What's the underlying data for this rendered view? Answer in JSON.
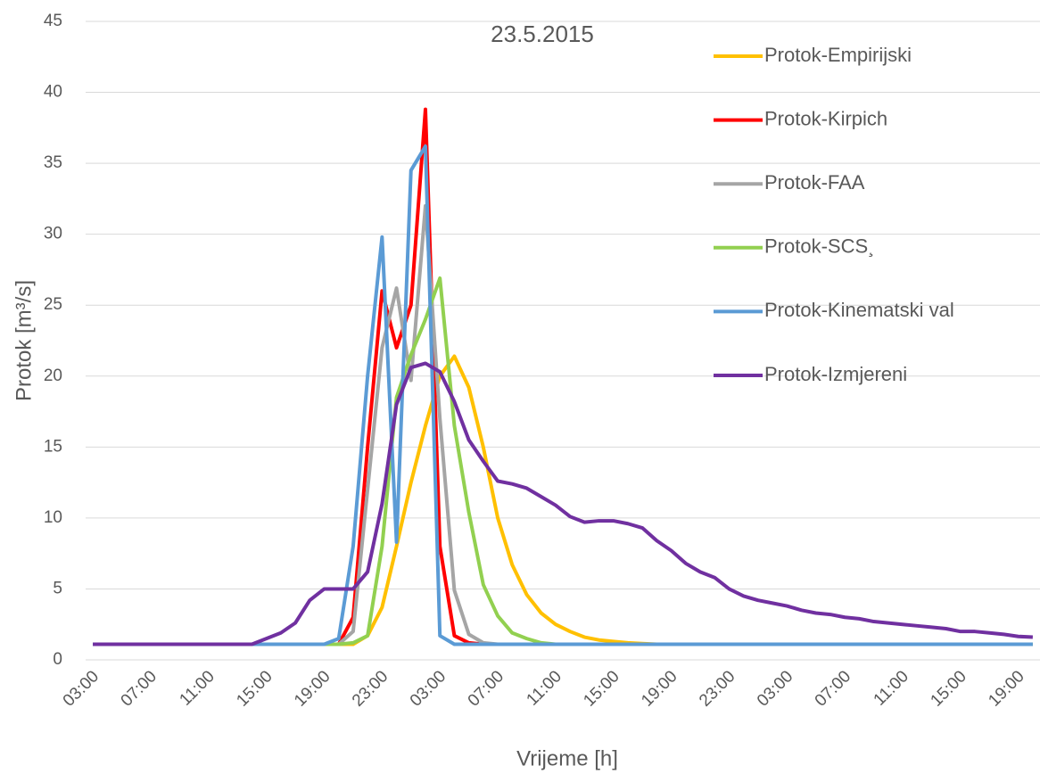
{
  "chart_data": {
    "type": "line",
    "title": "23.5.2015",
    "x_label": "Vrijeme [h]",
    "y_label": "Protok [m³/s]",
    "categories": [
      "03:00",
      null,
      null,
      null,
      "07:00",
      null,
      null,
      null,
      "11:00",
      null,
      null,
      null,
      "15:00",
      null,
      null,
      null,
      "19:00",
      null,
      null,
      null,
      "23:00",
      null,
      null,
      null,
      "03:00",
      null,
      null,
      null,
      "07:00",
      null,
      null,
      null,
      "11:00",
      null,
      null,
      null,
      "15:00",
      null,
      null,
      null,
      "19:00",
      null,
      null,
      null,
      "23:00",
      null,
      null,
      null,
      "03:00",
      null,
      null,
      null,
      "07:00",
      null,
      null,
      null,
      "11:00",
      null,
      null,
      null,
      "15:00",
      null,
      null,
      null,
      "19:00",
      null
    ],
    "ylim": [
      0,
      45
    ],
    "yticks": [
      0,
      5,
      10,
      15,
      20,
      25,
      30,
      35,
      40,
      45
    ],
    "grid": true,
    "legend": "right",
    "series": [
      {
        "name": "Protok-Empirijski",
        "color": "#ffc000",
        "values": [
          1.1,
          1.1,
          1.1,
          1.1,
          1.1,
          1.1,
          1.1,
          1.1,
          1.1,
          1.1,
          1.1,
          1.1,
          1.1,
          1.1,
          1.1,
          1.1,
          1.1,
          1.1,
          1.1,
          1.7,
          3.7,
          8,
          12.5,
          16.5,
          20,
          21.4,
          19.2,
          15,
          10,
          6.7,
          4.6,
          3.3,
          2.5,
          2.0,
          1.6,
          1.4,
          1.3,
          1.2,
          1.15,
          1.1,
          1.1,
          1.1,
          1.1,
          1.1,
          1.1,
          1.1,
          1.1,
          1.1,
          1.1,
          1.1,
          1.1,
          1.1,
          1.1,
          1.1,
          1.1,
          1.1,
          1.1,
          1.1,
          1.1,
          1.1,
          1.1,
          1.1,
          1.1,
          1.1,
          1.1,
          1.1
        ]
      },
      {
        "name": "Protok-Kirpich",
        "color": "#ff0000",
        "values": [
          1.1,
          1.1,
          1.1,
          1.1,
          1.1,
          1.1,
          1.1,
          1.1,
          1.1,
          1.1,
          1.1,
          1.1,
          1.1,
          1.1,
          1.1,
          1.1,
          1.1,
          1.1,
          3,
          15,
          26,
          22,
          25,
          38.8,
          8,
          1.7,
          1.2,
          1.1,
          1.1,
          1.1,
          1.1,
          1.1,
          1.1,
          1.1,
          1.1,
          1.1,
          1.1,
          1.1,
          1.1,
          1.1,
          1.1,
          1.1,
          1.1,
          1.1,
          1.1,
          1.1,
          1.1,
          1.1,
          1.1,
          1.1,
          1.1,
          1.1,
          1.1,
          1.1,
          1.1,
          1.1,
          1.1,
          1.1,
          1.1,
          1.1,
          1.1,
          1.1,
          1.1,
          1.1,
          1.1,
          1.1
        ]
      },
      {
        "name": "Protok-FAA",
        "color": "#a5a5a5",
        "values": [
          1.1,
          1.1,
          1.1,
          1.1,
          1.1,
          1.1,
          1.1,
          1.1,
          1.1,
          1.1,
          1.1,
          1.1,
          1.1,
          1.1,
          1.1,
          1.1,
          1.1,
          1.1,
          2,
          12,
          22,
          26.2,
          19.7,
          32,
          17,
          4.9,
          1.8,
          1.2,
          1.1,
          1.1,
          1.1,
          1.1,
          1.1,
          1.1,
          1.1,
          1.1,
          1.1,
          1.1,
          1.1,
          1.1,
          1.1,
          1.1,
          1.1,
          1.1,
          1.1,
          1.1,
          1.1,
          1.1,
          1.1,
          1.1,
          1.1,
          1.1,
          1.1,
          1.1,
          1.1,
          1.1,
          1.1,
          1.1,
          1.1,
          1.1,
          1.1,
          1.1,
          1.1,
          1.1,
          1.1,
          1.1
        ]
      },
      {
        "name": "Protok-SCS¸",
        "color": "#92d050",
        "values": [
          1.1,
          1.1,
          1.1,
          1.1,
          1.1,
          1.1,
          1.1,
          1.1,
          1.1,
          1.1,
          1.1,
          1.1,
          1.1,
          1.1,
          1.1,
          1.1,
          1.1,
          1.1,
          1.2,
          1.7,
          8,
          18.5,
          21.5,
          24,
          26.9,
          16.5,
          10.4,
          5.3,
          3.1,
          1.9,
          1.5,
          1.2,
          1.1,
          1.1,
          1.1,
          1.1,
          1.1,
          1.1,
          1.1,
          1.1,
          1.1,
          1.1,
          1.1,
          1.1,
          1.1,
          1.1,
          1.1,
          1.1,
          1.1,
          1.1,
          1.1,
          1.1,
          1.1,
          1.1,
          1.1,
          1.1,
          1.1,
          1.1,
          1.1,
          1.1,
          1.1,
          1.1,
          1.1,
          1.1,
          1.1,
          1.1
        ]
      },
      {
        "name": "Protok-Kinematski val",
        "color": "#5b9bd5",
        "values": [
          1.1,
          1.1,
          1.1,
          1.1,
          1.1,
          1.1,
          1.1,
          1.1,
          1.1,
          1.1,
          1.1,
          1.1,
          1.1,
          1.1,
          1.1,
          1.1,
          1.1,
          1.5,
          8,
          20,
          29.8,
          8.3,
          34.5,
          36.2,
          1.7,
          1.1,
          1.1,
          1.1,
          1.1,
          1.1,
          1.1,
          1.1,
          1.1,
          1.1,
          1.1,
          1.1,
          1.1,
          1.1,
          1.1,
          1.1,
          1.1,
          1.1,
          1.1,
          1.1,
          1.1,
          1.1,
          1.1,
          1.1,
          1.1,
          1.1,
          1.1,
          1.1,
          1.1,
          1.1,
          1.1,
          1.1,
          1.1,
          1.1,
          1.1,
          1.1,
          1.1,
          1.1,
          1.1,
          1.1,
          1.1,
          1.1
        ]
      },
      {
        "name": "Protok-Izmjereni",
        "color": "#7030a0",
        "values": [
          1.1,
          1.1,
          1.1,
          1.1,
          1.1,
          1.1,
          1.1,
          1.1,
          1.1,
          1.1,
          1.1,
          1.1,
          1.5,
          1.9,
          2.6,
          4.2,
          5.0,
          5.0,
          5.0,
          6.2,
          11,
          18,
          20.6,
          20.9,
          20.3,
          18.2,
          15.5,
          14,
          12.6,
          12.4,
          12.1,
          11.5,
          10.9,
          10.1,
          9.7,
          9.8,
          9.8,
          9.6,
          9.3,
          8.4,
          7.7,
          6.8,
          6.2,
          5.8,
          5.0,
          4.5,
          4.2,
          4.0,
          3.8,
          3.5,
          3.3,
          3.2,
          3.0,
          2.9,
          2.7,
          2.6,
          2.5,
          2.4,
          2.3,
          2.2,
          2.0,
          2.0,
          1.9,
          1.8,
          1.65,
          1.6
        ]
      }
    ]
  }
}
